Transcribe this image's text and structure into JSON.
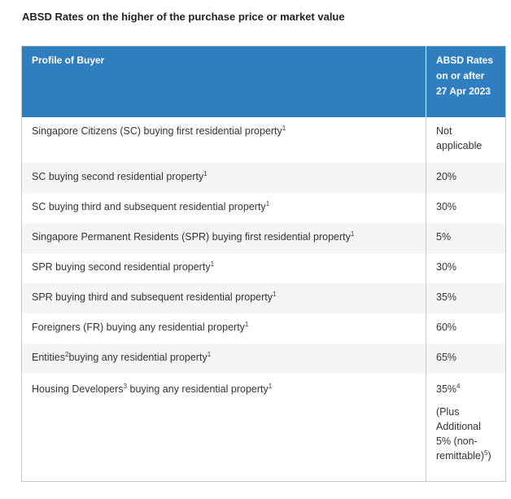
{
  "heading": "ABSD Rates on the higher of the purchase price or market value",
  "table": {
    "headers": [
      "Profile of Buyer",
      "ABSD Rates on or after 27 Apr 2023"
    ],
    "rows": [
      {
        "profile": "Singapore Citizens (SC) buying first residential property",
        "sup": "1",
        "rate": "Not applicable"
      },
      {
        "profile": "SC buying second residential property",
        "sup": "1",
        "rate": "20%"
      },
      {
        "profile": "SC buying third and subsequent residential property",
        "sup": "1",
        "rate": "30%"
      },
      {
        "profile": "Singapore Permanent Residents (SPR) buying first residential property",
        "sup": "1",
        "rate": "5%"
      },
      {
        "profile": "SPR buying second residential property",
        "sup": "1",
        "rate": "30%"
      },
      {
        "profile": "SPR buying third and subsequent residential property",
        "sup": "1",
        "rate": "35%"
      },
      {
        "profile": "Foreigners (FR) buying any residential property",
        "sup": "1",
        "rate": "60%"
      },
      {
        "profile_a": "Entities",
        "sup_a": "2",
        "profile_b": "buying any residential property",
        "sup": "1",
        "rate": "65%"
      },
      {
        "profile_a": "Housing Developers",
        "sup_a": "3",
        "profile_b": " buying any residential property",
        "sup": "1",
        "rate": "35%",
        "rate_sup": "4",
        "note": "(Plus Additional 5% (non-remittable)",
        "note_sup": "5",
        "note_end": ")"
      }
    ]
  }
}
